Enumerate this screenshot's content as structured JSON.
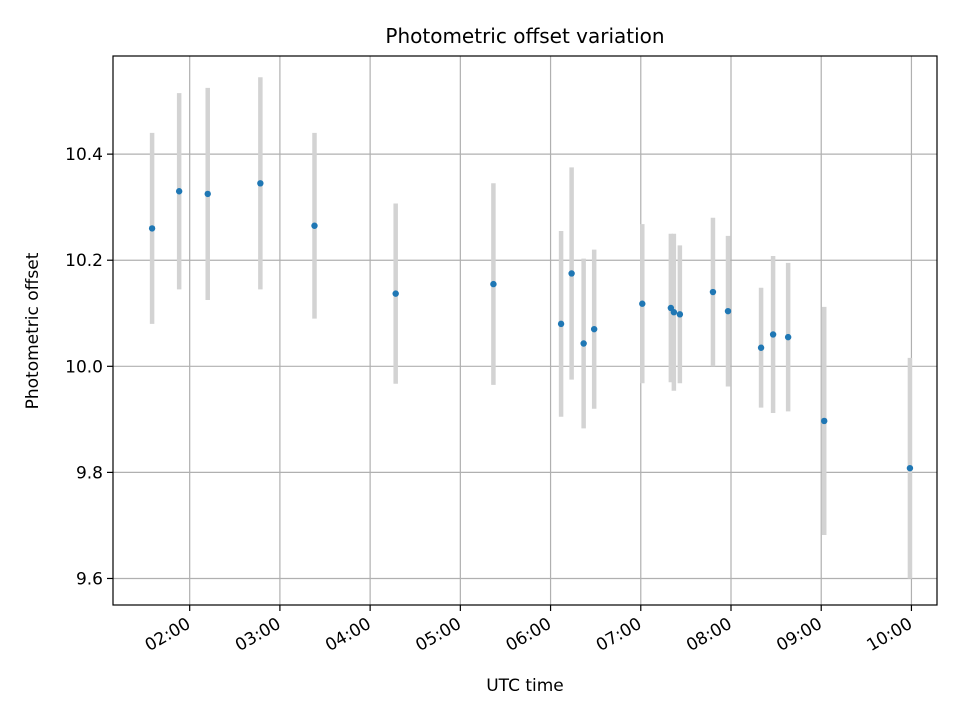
{
  "chart_data": {
    "type": "scatter",
    "title": "Photometric offset variation",
    "xlabel": "UTC time",
    "ylabel": "Photometric offset",
    "x_axis_kind": "time",
    "xlim": [
      "01:09",
      "10:17"
    ],
    "ylim": [
      9.55,
      10.585
    ],
    "grid": true,
    "xticks": [
      "02:00",
      "03:00",
      "04:00",
      "05:00",
      "06:00",
      "07:00",
      "08:00",
      "09:00",
      "10:00"
    ],
    "yticks": [
      9.6,
      9.8,
      10.0,
      10.2,
      10.4
    ],
    "ytick_labels": [
      "9.6",
      "9.8",
      "10.0",
      "10.2",
      "10.4"
    ],
    "colors": {
      "point": "#1f77b4",
      "errorbar": "#d3d3d3",
      "grid": "#b0b0b0"
    },
    "points": [
      {
        "x": "01:35",
        "y": 10.26,
        "err": 0.18
      },
      {
        "x": "01:53",
        "y": 10.33,
        "err": 0.185
      },
      {
        "x": "02:12",
        "y": 10.325,
        "err": 0.2
      },
      {
        "x": "02:47",
        "y": 10.345,
        "err": 0.2
      },
      {
        "x": "03:23",
        "y": 10.265,
        "err": 0.175
      },
      {
        "x": "04:17",
        "y": 10.137,
        "err": 0.17
      },
      {
        "x": "05:22",
        "y": 10.155,
        "err": 0.19
      },
      {
        "x": "06:07",
        "y": 10.08,
        "err": 0.175
      },
      {
        "x": "06:14",
        "y": 10.175,
        "err": 0.2
      },
      {
        "x": "06:22",
        "y": 10.043,
        "err": 0.16
      },
      {
        "x": "06:29",
        "y": 10.07,
        "err": 0.15
      },
      {
        "x": "07:01",
        "y": 10.118,
        "err": 0.15
      },
      {
        "x": "07:20",
        "y": 10.11,
        "err": 0.14
      },
      {
        "x": "07:22",
        "y": 10.102,
        "err": 0.148
      },
      {
        "x": "07:26",
        "y": 10.098,
        "err": 0.13
      },
      {
        "x": "07:48",
        "y": 10.14,
        "err": 0.14
      },
      {
        "x": "07:58",
        "y": 10.104,
        "err": 0.142
      },
      {
        "x": "08:20",
        "y": 10.035,
        "err": 0.113
      },
      {
        "x": "08:28",
        "y": 10.06,
        "err": 0.148
      },
      {
        "x": "08:38",
        "y": 10.055,
        "err": 0.14
      },
      {
        "x": "09:02",
        "y": 9.897,
        "err": 0.215
      },
      {
        "x": "09:59",
        "y": 9.808,
        "err": 0.208
      }
    ]
  }
}
